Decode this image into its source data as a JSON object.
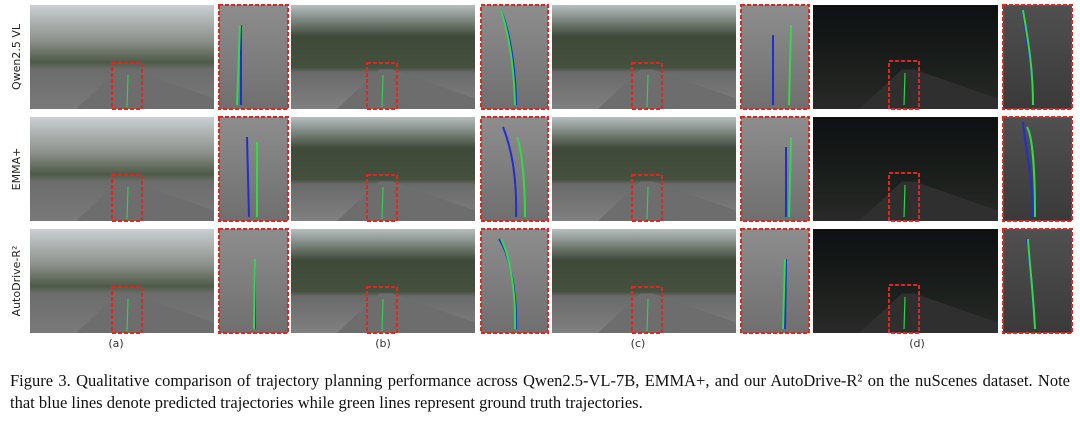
{
  "figure": {
    "row_labels": [
      "Qwen2.5 VL",
      "EMMA+",
      "AutoDrive-R²"
    ],
    "column_labels": [
      "(a)",
      "(b)",
      "(c)",
      "(d)"
    ],
    "caption": "Figure 3.  Qualitative comparison of trajectory planning performance across Qwen2.5-VL-7B, EMMA+, and our AutoDrive-R² on the nuScenes dataset. Note that blue lines denote predicted trajectories while green lines represent ground truth trajectories."
  }
}
